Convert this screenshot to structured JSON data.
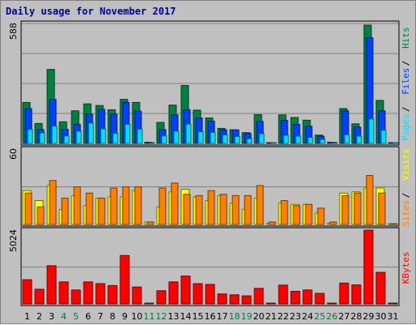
{
  "chart_data": {
    "type": "bar",
    "title": "Daily usage for November 2017",
    "categories": [
      "1",
      "2",
      "3",
      "4",
      "5",
      "6",
      "7",
      "8",
      "9",
      "10",
      "11",
      "12",
      "13",
      "14",
      "15",
      "16",
      "17",
      "18",
      "19",
      "20",
      "21",
      "22",
      "23",
      "24",
      "25",
      "26",
      "27",
      "28",
      "29",
      "30",
      "31"
    ],
    "weekend_days": [
      "4",
      "5",
      "11",
      "12",
      "18",
      "19",
      "25",
      "26"
    ],
    "colors": {
      "hits": "#008040",
      "files": "#0040ff",
      "pages": "#00e0ff",
      "visits": "#ffff00",
      "sites": "#ff8000",
      "kbytes": "#ff0000",
      "weekday_label": "#000000",
      "weekend_label": "#008040",
      "grid": "#808080",
      "panel": "#c0c0c0"
    },
    "panels": [
      {
        "max_label": "588",
        "ylim": [
          0,
          588
        ],
        "legend": [
          {
            "text": "Hits",
            "color": "#008040"
          },
          {
            "text": "Files",
            "color": "#0040ff"
          },
          {
            "text": "Pages",
            "color": "#00e0ff"
          }
        ],
        "series": [
          {
            "name": "Hits",
            "values": [
              201,
              98,
              363,
              106,
              160,
              194,
              186,
              165,
              216,
              201,
              6,
              103,
              188,
              284,
              163,
              125,
              74,
              67,
              53,
              141,
              4,
              140,
              127,
              114,
              41,
              6,
              171,
              96,
              580,
              211,
              2
            ]
          },
          {
            "name": "Files",
            "values": [
              171,
              68,
              216,
              69,
              93,
              144,
              167,
              143,
              201,
              158,
              4,
              68,
              140,
              165,
              125,
              109,
              67,
              66,
              49,
              108,
              3,
              113,
              93,
              84,
              35,
              5,
              160,
              80,
              518,
              160,
              1
            ]
          },
          {
            "name": "Pages",
            "values": [
              69,
              52,
              85,
              37,
              60,
              100,
              72,
              50,
              94,
              70,
              4,
              37,
              60,
              95,
              57,
              54,
              42,
              34,
              23,
              48,
              2,
              40,
              36,
              30,
              20,
              4,
              43,
              36,
              120,
              65,
              1
            ]
          }
        ]
      },
      {
        "max_label": "60",
        "ylim": [
          0,
          60
        ],
        "legend": [
          {
            "text": "Visits",
            "color": "#ffff00"
          },
          {
            "text": "Sites",
            "color": "#ff8000"
          }
        ],
        "series": [
          {
            "name": "Visits",
            "values": [
              27,
              19,
              31,
              12,
              23,
              15,
              21,
              22,
              22,
              27,
              2,
              14,
              26,
              28,
              22,
              19,
              23,
              17,
              12,
              21,
              1,
              17,
              16,
              16,
              9,
              1,
              25,
              26,
              29,
              29,
              0
            ]
          },
          {
            "name": "Sites",
            "values": [
              25,
              14,
              35,
              21,
              30,
              25,
              21,
              29,
              30,
              30,
              2,
              29,
              33,
              24,
              23,
              27,
              24,
              23,
              23,
              31,
              2,
              19,
              15,
              16,
              13,
              2,
              23,
              25,
              39,
              25,
              0
            ]
          }
        ]
      },
      {
        "max_label": "5024",
        "ylim": [
          0,
          5024
        ],
        "legend": [
          {
            "text": "KBytes",
            "color": "#ff0000"
          }
        ],
        "series": [
          {
            "name": "KBytes",
            "values": [
              1650,
              1000,
              2600,
              1500,
              950,
              1500,
              1380,
              1250,
              3300,
              1150,
              15,
              900,
              1500,
              1900,
              1380,
              1330,
              680,
              620,
              550,
              1060,
              30,
              1280,
              860,
              950,
              720,
              30,
              1420,
              1300,
              5100,
              2150,
              30
            ]
          }
        ]
      }
    ]
  }
}
